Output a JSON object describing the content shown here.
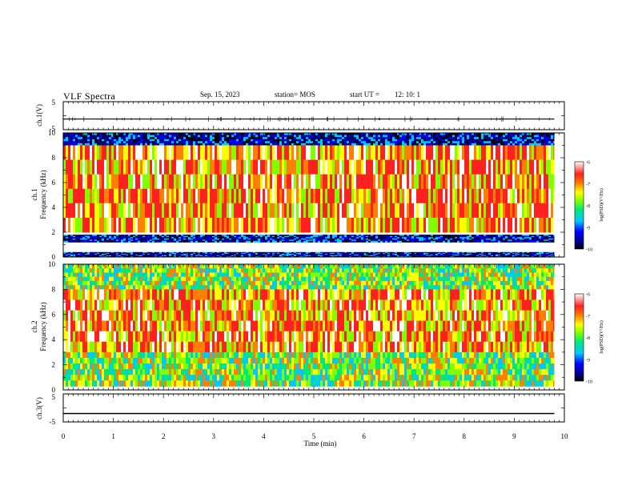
{
  "header": {
    "title": "VLF Spectra",
    "date": "Sep. 15, 2023",
    "station": "station= MOS",
    "start_label": "start  UT =",
    "start_time": "12: 10: 1"
  },
  "chart_data": [
    {
      "type": "line",
      "name": "ch1-waveform",
      "ylabel": "ch.1(V)",
      "ylim": [
        -5,
        5
      ],
      "yticks": [
        "5",
        "-5"
      ],
      "xlim": [
        0,
        10
      ],
      "x": [
        0,
        9.8
      ],
      "y": [
        -1.2,
        -1.2
      ]
    },
    {
      "type": "heatmap",
      "name": "ch1-spectrogram",
      "ylabel": "ch.1\nFrequency (kHz)",
      "ylim": [
        0,
        10
      ],
      "yticks": [
        "0",
        "2",
        "4",
        "6",
        "8",
        "10"
      ],
      "xlim": [
        0,
        10
      ],
      "data_end_min": 9.8,
      "colorbar": {
        "label": "log(PSD)(V²/Hz)",
        "range": [
          -10,
          -6
        ],
        "ticks": [
          "-6",
          "-7",
          "-8",
          "-9",
          "-10"
        ]
      },
      "bands": [
        {
          "f": [
            9.0,
            10.0
          ],
          "level": "low"
        },
        {
          "f": [
            2.0,
            9.0
          ],
          "level": "high"
        },
        {
          "f": [
            1.2,
            1.8
          ],
          "level": "low"
        },
        {
          "f": [
            0.0,
            0.4
          ],
          "level": "low"
        }
      ]
    },
    {
      "type": "heatmap",
      "name": "ch2-spectrogram",
      "ylabel": "ch.2\nFrequency (kHz)",
      "ylim": [
        0,
        10
      ],
      "yticks": [
        "0",
        "2",
        "4",
        "6",
        "8",
        "10"
      ],
      "xlim": [
        0,
        10
      ],
      "data_end_min": 9.8,
      "colorbar": {
        "label": "log(PSD)(V²/Hz)",
        "range": [
          -10,
          -6
        ],
        "ticks": [
          "-6",
          "-7",
          "-8",
          "-9",
          "-10"
        ]
      },
      "bands": [
        {
          "f": [
            8.0,
            10.0
          ],
          "level": "mid"
        },
        {
          "f": [
            3.0,
            8.0
          ],
          "level": "high"
        },
        {
          "f": [
            0.3,
            3.0
          ],
          "level": "mid"
        }
      ]
    },
    {
      "type": "line",
      "name": "ch3-waveform",
      "ylabel": "ch.3(V)",
      "ylim": [
        -5,
        5
      ],
      "yticks": [
        "5",
        "-5"
      ],
      "xlim": [
        0,
        10
      ],
      "x": [
        0,
        9.8
      ],
      "y": [
        -2.0,
        -2.0
      ]
    }
  ],
  "xaxis": {
    "label": "Time  (min)",
    "ticks": [
      "0",
      "1",
      "2",
      "3",
      "4",
      "5",
      "6",
      "7",
      "8",
      "9",
      "10"
    ]
  },
  "colors": {
    "colormap": [
      "#000000",
      "#00008b",
      "#0000ff",
      "#00c8ff",
      "#00e87a",
      "#7fff00",
      "#ffff00",
      "#ff8000",
      "#ff2020",
      "#ffffff"
    ]
  }
}
